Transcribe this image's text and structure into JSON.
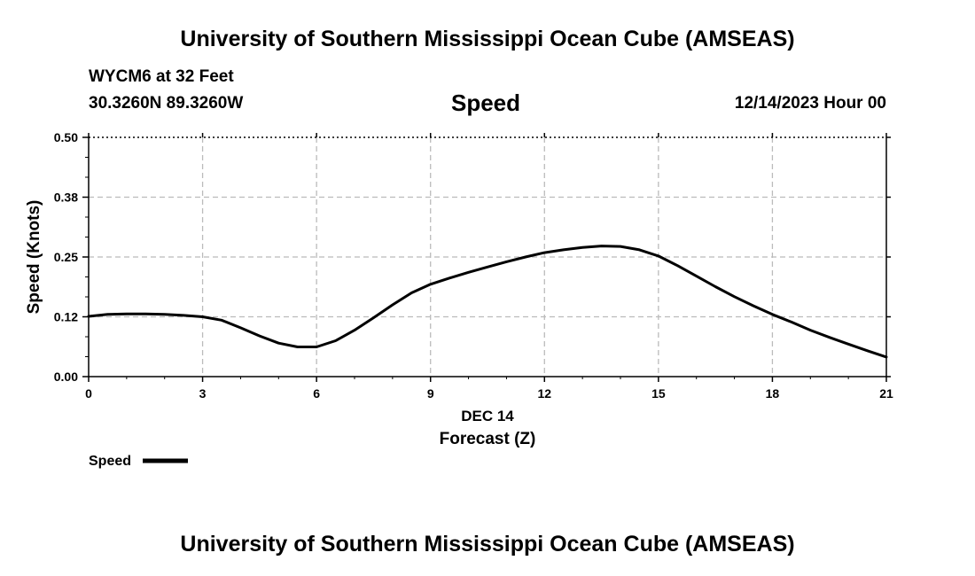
{
  "header": {
    "title": "University of Southern Mississippi Ocean Cube (AMSEAS)",
    "station": "WYCM6 at 32 Feet",
    "coords": "30.3260N  89.3260W",
    "datetime": "12/14/2023 Hour 00"
  },
  "footer": {
    "title": "University of Southern Mississippi Ocean Cube (AMSEAS)"
  },
  "chart_data": {
    "type": "line",
    "title": "Speed",
    "xlabel": "Forecast (Z)",
    "xlabel_date": "DEC 14",
    "ylabel": "Speed (Knots)",
    "xlim": [
      0,
      21
    ],
    "ylim": [
      0,
      0.5
    ],
    "xticks": [
      0,
      3,
      6,
      9,
      12,
      15,
      18,
      21
    ],
    "xtick_labels": [
      "0",
      "3",
      "6",
      "9",
      "12",
      "15",
      "18",
      "21"
    ],
    "yticks": [
      0,
      0.125,
      0.25,
      0.375,
      0.5
    ],
    "ytick_labels": [
      "0.00",
      "0.12",
      "0.25",
      "0.38",
      "0.50"
    ],
    "grid": true,
    "legend": "bottom-left",
    "series": [
      {
        "name": "Speed",
        "color": "#000000",
        "x": [
          0,
          0.5,
          1,
          1.5,
          2,
          2.5,
          3,
          3.5,
          4,
          4.5,
          5,
          5.5,
          6,
          6.5,
          7,
          7.5,
          8,
          8.5,
          9,
          9.5,
          10,
          10.5,
          11,
          11.5,
          12,
          12.5,
          13,
          13.5,
          14,
          14.5,
          15,
          15.5,
          16,
          16.5,
          17,
          17.5,
          18,
          18.5,
          19,
          19.5,
          20,
          20.5,
          21
        ],
        "y": [
          0.126,
          0.13,
          0.131,
          0.131,
          0.13,
          0.128,
          0.125,
          0.118,
          0.102,
          0.085,
          0.07,
          0.062,
          0.062,
          0.075,
          0.097,
          0.123,
          0.15,
          0.175,
          0.193,
          0.206,
          0.218,
          0.229,
          0.24,
          0.25,
          0.259,
          0.265,
          0.27,
          0.273,
          0.272,
          0.265,
          0.252,
          0.232,
          0.21,
          0.188,
          0.167,
          0.148,
          0.13,
          0.114,
          0.097,
          0.082,
          0.068,
          0.054,
          0.041
        ]
      }
    ]
  }
}
